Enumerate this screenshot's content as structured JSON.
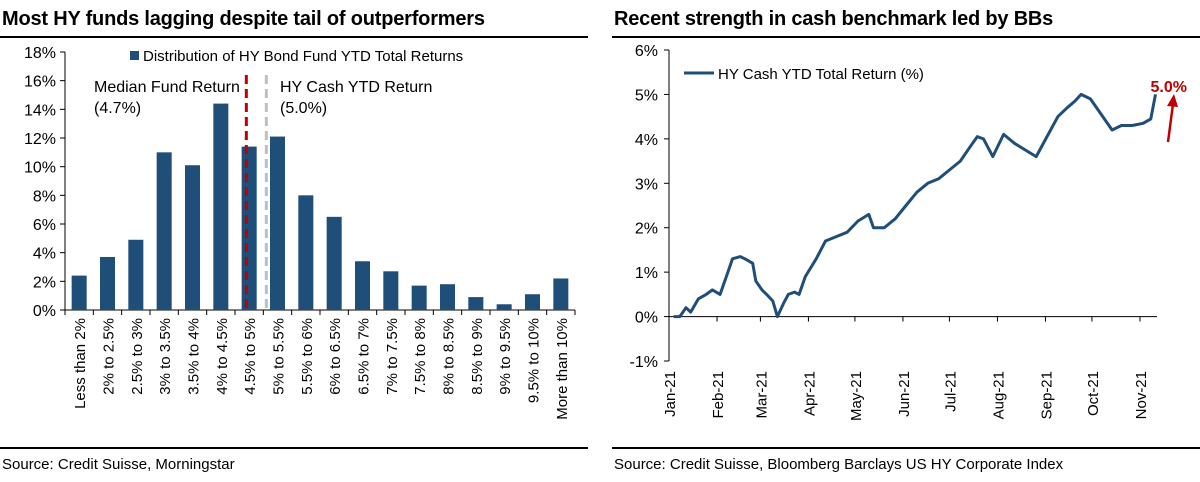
{
  "left": {
    "title": "Most HY funds lagging despite tail of outperformers",
    "source": "Source: Credit Suisse, Morningstar",
    "chart_data": {
      "type": "bar",
      "title": "Most HY funds lagging despite tail of outperformers",
      "categories": [
        "Less than 2%",
        "2% to 2.5%",
        "2.5% to 3%",
        "3% to 3.5%",
        "3.5% to 4%",
        "4% to 4.5%",
        "4.5% to 5%",
        "5% to 5.5%",
        "5.5% to 6%",
        "6% to 6.5%",
        "6.5% to 7%",
        "7% to 7.5%",
        "7.5% to 8%",
        "8% to 8.5%",
        "8.5% to 9%",
        "9% to 9.5%",
        "9.5% to 10%",
        "More than 10%"
      ],
      "series": [
        {
          "name": "Distribution of HY Bond Fund YTD Total Returns",
          "values": [
            2.4,
            3.7,
            4.9,
            11.0,
            10.1,
            14.4,
            11.4,
            12.1,
            8.0,
            6.5,
            3.4,
            2.7,
            1.7,
            1.8,
            0.9,
            0.4,
            1.1,
            2.2
          ]
        }
      ],
      "ylim": [
        0,
        18
      ],
      "yticks": [
        "0%",
        "2%",
        "4%",
        "6%",
        "8%",
        "10%",
        "12%",
        "14%",
        "16%",
        "18%"
      ],
      "annotations": [
        {
          "label": "Median Fund Return",
          "value_label": "(4.7%)",
          "x": 4.7,
          "style": "dashed",
          "color": "#c00000"
        },
        {
          "label": "HY Cash YTD Return",
          "value_label": "(5.0%)",
          "x": 5.0,
          "style": "dashed",
          "color": "#bfbfbf"
        }
      ],
      "legend": "top",
      "bar_color": "#1f4e79"
    }
  },
  "right": {
    "title": "Recent strength in cash benchmark led by BBs",
    "source": "Source: Credit Suisse, Bloomberg Barclays US HY Corporate Index",
    "chart_data": {
      "type": "line",
      "title": "Recent strength in cash benchmark led by BBs",
      "series": [
        {
          "name": "HY Cash YTD Total Return (%)",
          "x": [
            "2021-01-04",
            "2021-01-08",
            "2021-01-12",
            "2021-01-15",
            "2021-01-20",
            "2021-01-25",
            "2021-01-29",
            "2021-02-03",
            "2021-02-08",
            "2021-02-11",
            "2021-02-16",
            "2021-02-19",
            "2021-02-24",
            "2021-02-26",
            "2021-03-02",
            "2021-03-05",
            "2021-03-09",
            "2021-03-12",
            "2021-03-16",
            "2021-03-19",
            "2021-03-23",
            "2021-03-26",
            "2021-03-30",
            "2021-04-06",
            "2021-04-12",
            "2021-04-19",
            "2021-04-26",
            "2021-05-03",
            "2021-05-10",
            "2021-05-13",
            "2021-05-20",
            "2021-05-27",
            "2021-06-03",
            "2021-06-10",
            "2021-06-17",
            "2021-06-24",
            "2021-07-01",
            "2021-07-08",
            "2021-07-14",
            "2021-07-19",
            "2021-07-23",
            "2021-07-29",
            "2021-08-05",
            "2021-08-12",
            "2021-08-19",
            "2021-08-26",
            "2021-09-02",
            "2021-09-09",
            "2021-09-15",
            "2021-09-20",
            "2021-09-24",
            "2021-09-30",
            "2021-10-07",
            "2021-10-14",
            "2021-10-20",
            "2021-10-27",
            "2021-11-03",
            "2021-11-08",
            "2021-11-11"
          ],
          "y": [
            0.0,
            0.0,
            0.2,
            0.1,
            0.4,
            0.5,
            0.6,
            0.5,
            1.0,
            1.3,
            1.35,
            1.3,
            1.2,
            0.8,
            0.6,
            0.5,
            0.35,
            0.0,
            0.3,
            0.5,
            0.55,
            0.5,
            0.9,
            1.3,
            1.7,
            1.8,
            1.9,
            2.15,
            2.3,
            2.0,
            2.0,
            2.2,
            2.5,
            2.8,
            3.0,
            3.1,
            3.3,
            3.5,
            3.8,
            4.05,
            4.0,
            3.6,
            4.1,
            3.9,
            3.75,
            3.6,
            4.05,
            4.5,
            4.7,
            4.85,
            5.0,
            4.9,
            4.55,
            4.2,
            4.3,
            4.3,
            4.35,
            4.45,
            5.0
          ]
        }
      ],
      "xticks": [
        "Jan-21",
        "Feb-21",
        "Mar-21",
        "Apr-21",
        "May-21",
        "Jun-21",
        "Jul-21",
        "Aug-21",
        "Sep-21",
        "Oct-21",
        "Nov-21"
      ],
      "ylim": [
        -1,
        6
      ],
      "yticks": [
        "-1%",
        "0%",
        "1%",
        "2%",
        "3%",
        "4%",
        "5%",
        "6%"
      ],
      "annotations": [
        {
          "label": "5.0%",
          "color": "#c00000",
          "arrow": "up"
        }
      ],
      "legend": "top-left",
      "line_color": "#1f4e79"
    }
  }
}
